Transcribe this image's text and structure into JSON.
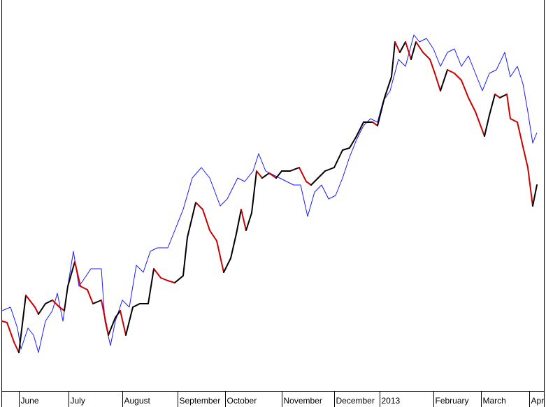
{
  "chart_data": {
    "type": "line",
    "xlim": [
      0,
      781
    ],
    "ylim": [
      0,
      560
    ],
    "xticks": [
      {
        "value": 27,
        "label": "June"
      },
      {
        "value": 98,
        "label": "July"
      },
      {
        "value": 175,
        "label": "August"
      },
      {
        "value": 254,
        "label": "September"
      },
      {
        "value": 322,
        "label": "October"
      },
      {
        "value": 403,
        "label": "November"
      },
      {
        "value": 478,
        "label": "December"
      },
      {
        "value": 543,
        "label": "2013"
      },
      {
        "value": 620,
        "label": "February"
      },
      {
        "value": 688,
        "label": "March"
      },
      {
        "value": 757,
        "label": "Apr"
      }
    ],
    "series": [
      {
        "color": "#1a1aff",
        "width": 1,
        "x": [
          3,
          15,
          25,
          30,
          40,
          48,
          55,
          65,
          75,
          82,
          90,
          97,
          105,
          113,
          120,
          130,
          145,
          150,
          158,
          165,
          175,
          185,
          195,
          205,
          215,
          225,
          240,
          250,
          262,
          275,
          288,
          300,
          315,
          325,
          340,
          350,
          362,
          370,
          380,
          390,
          400,
          410,
          420,
          430,
          440,
          450,
          460,
          470,
          480,
          490,
          500,
          510,
          520,
          530,
          540,
          548,
          558,
          570,
          580,
          592,
          600,
          610,
          620,
          630,
          640,
          650,
          660,
          670,
          680,
          690,
          700,
          710,
          722,
          730,
          740,
          748,
          755,
          762,
          768
        ],
        "values": [
          115,
          120,
          90,
          60,
          90,
          80,
          55,
          100,
          115,
          140,
          100,
          150,
          200,
          150,
          160,
          175,
          175,
          100,
          65,
          100,
          130,
          120,
          180,
          170,
          200,
          205,
          205,
          230,
          260,
          305,
          320,
          305,
          265,
          275,
          305,
          300,
          315,
          340,
          315,
          310,
          305,
          300,
          295,
          295,
          250,
          285,
          295,
          275,
          280,
          305,
          335,
          360,
          380,
          390,
          385,
          415,
          430,
          475,
          465,
          510,
          500,
          505,
          490,
          465,
          485,
          490,
          465,
          480,
          455,
          430,
          455,
          460,
          485,
          450,
          465,
          440,
          400,
          355,
          370
        ]
      },
      {
        "color": "#000000",
        "down_color": "#cc0000",
        "width": 2,
        "x": [
          3,
          10,
          20,
          27,
          37,
          50,
          55,
          65,
          75,
          85,
          92,
          97,
          107,
          115,
          125,
          133,
          145,
          155,
          165,
          172,
          180,
          190,
          200,
          212,
          220,
          230,
          240,
          250,
          262,
          268,
          280,
          290,
          300,
          310,
          320,
          330,
          338,
          345,
          352,
          360,
          367,
          375,
          385,
          395,
          403,
          415,
          428,
          438,
          445,
          455,
          465,
          478,
          490,
          500,
          510,
          520,
          533,
          540,
          550,
          560,
          565,
          572,
          580,
          588,
          595,
          605,
          615,
          622,
          630,
          640,
          650,
          660,
          670,
          680,
          693,
          700,
          708,
          715,
          725,
          730,
          740,
          748,
          755,
          762,
          768
        ],
        "values": [
          100,
          98,
          70,
          55,
          137,
          120,
          110,
          125,
          130,
          120,
          115,
          150,
          185,
          150,
          145,
          125,
          130,
          80,
          105,
          115,
          80,
          120,
          125,
          125,
          175,
          162,
          158,
          155,
          165,
          220,
          270,
          260,
          230,
          215,
          170,
          190,
          225,
          260,
          230,
          255,
          315,
          305,
          312,
          305,
          315,
          315,
          320,
          300,
          295,
          305,
          315,
          320,
          345,
          348,
          365,
          385,
          385,
          380,
          420,
          450,
          500,
          485,
          500,
          475,
          500,
          485,
          475,
          455,
          430,
          460,
          455,
          445,
          420,
          400,
          365,
          395,
          425,
          420,
          425,
          390,
          385,
          350,
          320,
          265,
          295
        ]
      }
    ]
  }
}
